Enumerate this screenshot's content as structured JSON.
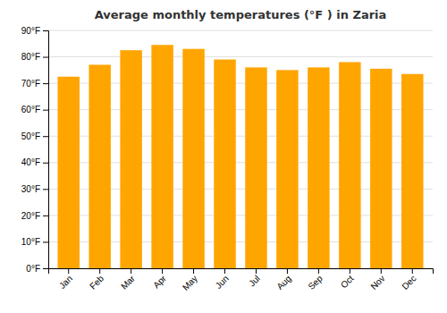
{
  "chart_data": {
    "type": "bar",
    "title": "Average monthly temperatures (°F ) in Zaria",
    "categories": [
      "Jan",
      "Feb",
      "Mar",
      "Apr",
      "May",
      "Jun",
      "Jul",
      "Aug",
      "Sep",
      "Oct",
      "Nov",
      "Dec"
    ],
    "values": [
      72.5,
      77.0,
      82.5,
      84.5,
      83.0,
      79.0,
      76.0,
      75.0,
      76.0,
      78.0,
      75.5,
      73.5
    ],
    "color": "#FFA500",
    "ylim": [
      0,
      90
    ],
    "yticks": [
      {
        "value": 0,
        "label": "0°F"
      },
      {
        "value": 10,
        "label": "10°F"
      },
      {
        "value": 20,
        "label": "20°F"
      },
      {
        "value": 30,
        "label": "30°F"
      },
      {
        "value": 40,
        "label": "40°F"
      },
      {
        "value": 50,
        "label": "50°F"
      },
      {
        "value": 60,
        "label": "60°F"
      },
      {
        "value": 70,
        "label": "70°F"
      },
      {
        "value": 80,
        "label": "80°F"
      },
      {
        "value": 90,
        "label": "90°F"
      }
    ],
    "grid": true
  }
}
